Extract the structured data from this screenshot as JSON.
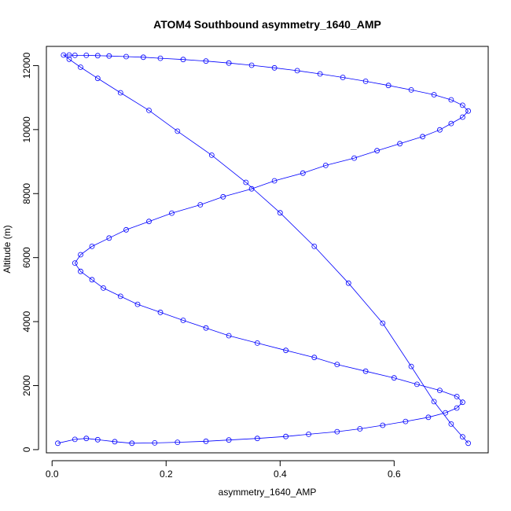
{
  "chart_data": {
    "type": "scatter",
    "title": "ATOM4 Southbound asymmetry_1640_AMP",
    "xlabel": "asymmetry_1640_AMP",
    "ylabel": "Altitude (m)",
    "xlim": [
      -0.01,
      0.765
    ],
    "ylim": [
      -100,
      12600
    ],
    "x_ticks": [
      "0.0",
      "0.2",
      "0.4",
      "0.6"
    ],
    "x_tick_values": [
      0.0,
      0.2,
      0.4,
      0.6
    ],
    "y_ticks": [
      "0",
      "2000",
      "4000",
      "6000",
      "8000",
      "10000",
      "12000"
    ],
    "y_tick_values": [
      0,
      2000,
      4000,
      6000,
      8000,
      10000,
      12000
    ],
    "grid": false,
    "legend": "none",
    "marker": "open-circle",
    "connected_lines": true,
    "color": "#0000ff",
    "series": [
      {
        "x": [
          0.01,
          0.04,
          0.06,
          0.08,
          0.11,
          0.14,
          0.18,
          0.22,
          0.27,
          0.31,
          0.36,
          0.41,
          0.45,
          0.5,
          0.54,
          0.58,
          0.62,
          0.66,
          0.69,
          0.71,
          0.72,
          0.71,
          0.68,
          0.64,
          0.6,
          0.55,
          0.5,
          0.46,
          0.41,
          0.36,
          0.31,
          0.27,
          0.23,
          0.19,
          0.15,
          0.12,
          0.09,
          0.07,
          0.05,
          0.04,
          0.05,
          0.07,
          0.1,
          0.13,
          0.17,
          0.21,
          0.26,
          0.3,
          0.35,
          0.39,
          0.44,
          0.48,
          0.53,
          0.57,
          0.61,
          0.65,
          0.68,
          0.7,
          0.72,
          0.73,
          0.72,
          0.7,
          0.67,
          0.63,
          0.59,
          0.55,
          0.51,
          0.47,
          0.43,
          0.39,
          0.35,
          0.31,
          0.27,
          0.23,
          0.19,
          0.16,
          0.13,
          0.1,
          0.08,
          0.06,
          0.04,
          0.03,
          0.02,
          0.03,
          0.05,
          0.08,
          0.12,
          0.17,
          0.22,
          0.28,
          0.34,
          0.4,
          0.46,
          0.52,
          0.58,
          0.63,
          0.67,
          0.7,
          0.72,
          0.73
        ],
        "y": [
          200,
          320,
          350,
          310,
          250,
          200,
          210,
          230,
          260,
          300,
          350,
          410,
          480,
          560,
          650,
          760,
          880,
          1010,
          1150,
          1300,
          1480,
          1660,
          1850,
          2040,
          2240,
          2450,
          2660,
          2880,
          3100,
          3330,
          3560,
          3800,
          4040,
          4290,
          4540,
          4790,
          5050,
          5310,
          5570,
          5830,
          6090,
          6350,
          6610,
          6870,
          7130,
          7390,
          7650,
          7900,
          8150,
          8400,
          8640,
          8880,
          9110,
          9340,
          9560,
          9780,
          9990,
          10190,
          10390,
          10580,
          10760,
          10930,
          11090,
          11240,
          11380,
          11510,
          11630,
          11740,
          11840,
          11930,
          12010,
          12080,
          12140,
          12190,
          12230,
          12260,
          12280,
          12300,
          12310,
          12320,
          12320,
          12330,
          12330,
          12200,
          11950,
          11600,
          11150,
          10600,
          9950,
          9200,
          8350,
          7400,
          6350,
          5200,
          3950,
          2600,
          1500,
          800,
          400,
          200
        ]
      }
    ]
  }
}
